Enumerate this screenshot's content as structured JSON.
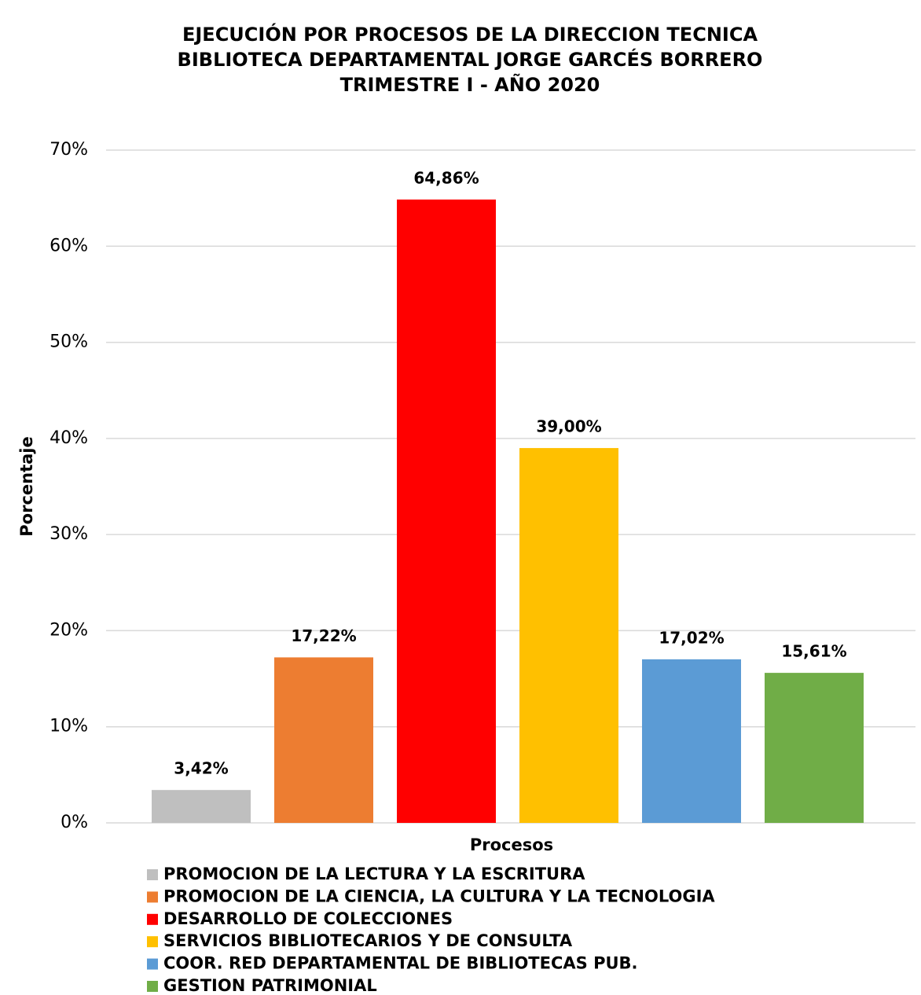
{
  "chart_data": {
    "type": "bar",
    "title": [
      "EJECUCIÓN POR PROCESOS DE LA DIRECCION TECNICA",
      "BIBLIOTECA DEPARTAMENTAL  JORGE GARCÉS BORRERO",
      "TRIMESTRE I - AÑO 2020"
    ],
    "y_label": "Porcentaje",
    "x_label": "Procesos",
    "categories": [
      null
    ],
    "series": [
      {
        "name": "PROMOCION DE LA LECTURA Y LA ESCRITURA",
        "color": "#bfbfbf",
        "values": [
          3.42
        ],
        "value_labels": [
          "3,42%"
        ]
      },
      {
        "name": "PROMOCION DE LA CIENCIA, LA CULTURA Y LA TECNOLOGIA",
        "color": "#ed7d31",
        "values": [
          17.22
        ],
        "value_labels": [
          "17,22%"
        ]
      },
      {
        "name": "DESARROLLO DE COLECCIONES",
        "color": "#ff0000",
        "values": [
          64.86
        ],
        "value_labels": [
          "64,86%"
        ]
      },
      {
        "name": "SERVICIOS BIBLIOTECARIOS Y DE CONSULTA",
        "color": "#ffc000",
        "values": [
          39.0
        ],
        "value_labels": [
          "39,00%"
        ]
      },
      {
        "name": "COOR. RED DEPARTAMENTAL DE BIBLIOTECAS PUB.",
        "color": "#5b9bd5",
        "values": [
          17.02
        ],
        "value_labels": [
          "17,02%"
        ]
      },
      {
        "name": "GESTION PATRIMONIAL",
        "color": "#70ad47",
        "values": [
          15.61
        ],
        "value_labels": [
          "15,61%"
        ]
      }
    ],
    "ylim": [
      0,
      70
    ],
    "yticks": [
      {
        "value": 0,
        "label": "0%"
      },
      {
        "value": 10,
        "label": "10%"
      },
      {
        "value": 20,
        "label": "20%"
      },
      {
        "value": 30,
        "label": "30%"
      },
      {
        "value": 40,
        "label": "40%"
      },
      {
        "value": 50,
        "label": "50%"
      },
      {
        "value": 60,
        "label": "60%"
      },
      {
        "value": 70,
        "label": "70%"
      }
    ],
    "grid": true,
    "legend": "bottom"
  }
}
